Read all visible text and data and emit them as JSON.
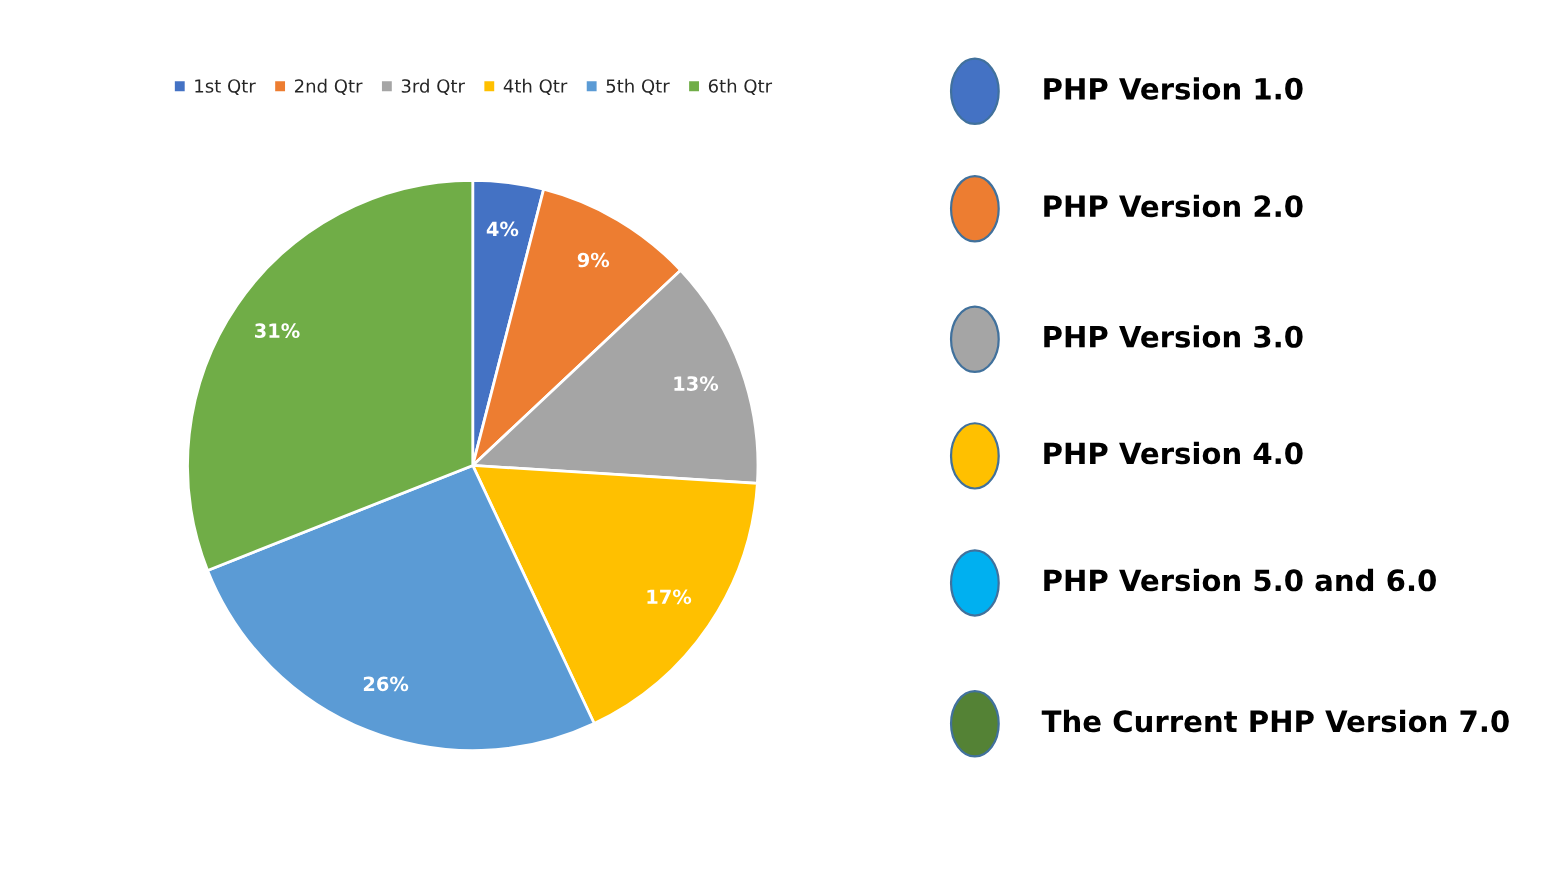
{
  "chart_data": [
    {
      "type": "pie",
      "categories": [
        "1st Qtr",
        "2nd Qtr",
        "3rd Qtr",
        "4th Qtr",
        "5th Qtr",
        "6th Qtr"
      ],
      "values": [
        4,
        9,
        13,
        17,
        26,
        31
      ],
      "colors": [
        "#4472c4",
        "#ed7d31",
        "#a5a5a5",
        "#ffc000",
        "#5b9bd5",
        "#70ad47"
      ],
      "value_labels": [
        "4%",
        "9%",
        "13%",
        "17%",
        "26%",
        "31%"
      ],
      "legend": "top"
    },
    {
      "type": "other",
      "annotations": [
        "PHP Version 1.0",
        "PHP Version 2.0",
        "PHP Version 3.0",
        "PHP Version 4.0",
        "PHP Version 5.0 and 6.0",
        "The Current PHP Version 7.0"
      ],
      "colors": [
        "#4472c4",
        "#ed7d31",
        "#a5a5a5",
        "#ffc000",
        "#00b0f0",
        "#548235"
      ]
    }
  ]
}
